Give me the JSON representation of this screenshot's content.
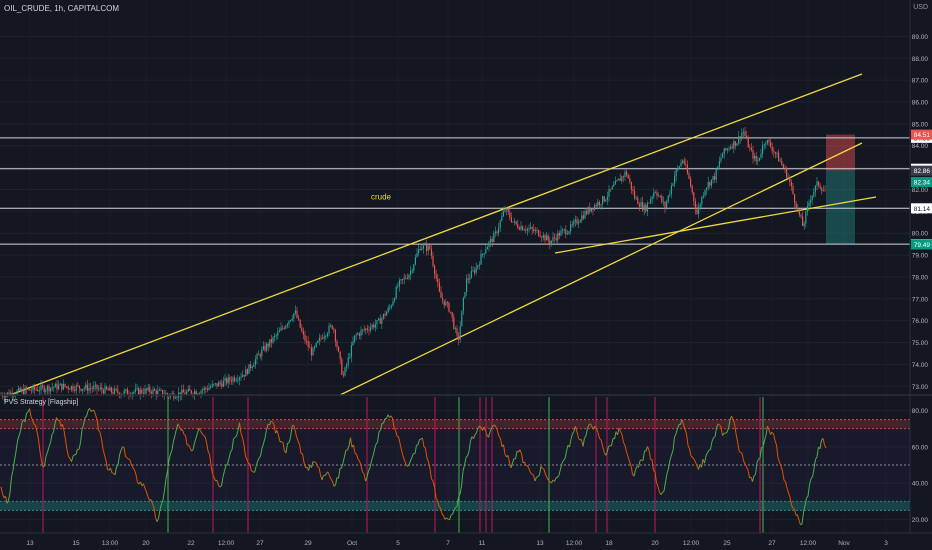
{
  "header": {
    "symbol": "OIL_CRUDE, 1h, CAPITALCOM",
    "currency": "USD"
  },
  "indicator": {
    "title": "PVS Strategy [Flagship]"
  },
  "chart_data": [
    {
      "type": "candlestick",
      "title": "OIL_CRUDE, 1h, CAPITALCOM",
      "y_ticks": [
        73.0,
        74.0,
        75.0,
        76.0,
        77.0,
        78.0,
        79.0,
        80.0,
        81.0,
        82.0,
        83.0,
        84.0,
        85.0,
        86.0,
        87.0,
        88.0,
        89.0
      ],
      "ylim": [
        72.6,
        90.3
      ],
      "price_anchors": [
        [
          0,
          72.6
        ],
        [
          25,
          72.8
        ],
        [
          60,
          73.0
        ],
        [
          95,
          72.9
        ],
        [
          120,
          72.7
        ],
        [
          150,
          72.8
        ],
        [
          170,
          72.6
        ],
        [
          200,
          72.8
        ],
        [
          225,
          73.2
        ],
        [
          245,
          73.6
        ],
        [
          262,
          74.6
        ],
        [
          278,
          75.4
        ],
        [
          295,
          76.4
        ],
        [
          303,
          75.3
        ],
        [
          312,
          74.5
        ],
        [
          322,
          75.3
        ],
        [
          333,
          75.8
        ],
        [
          343,
          73.4
        ],
        [
          355,
          75.3
        ],
        [
          365,
          75.6
        ],
        [
          378,
          75.9
        ],
        [
          390,
          76.6
        ],
        [
          398,
          77.6
        ],
        [
          410,
          78.2
        ],
        [
          420,
          79.4
        ],
        [
          430,
          79.3
        ],
        [
          440,
          77.1
        ],
        [
          450,
          76.5
        ],
        [
          458,
          75.0
        ],
        [
          466,
          77.8
        ],
        [
          476,
          78.4
        ],
        [
          485,
          79.3
        ],
        [
          495,
          79.9
        ],
        [
          505,
          81.1
        ],
        [
          515,
          80.4
        ],
        [
          528,
          80.2
        ],
        [
          540,
          80.0
        ],
        [
          550,
          79.6
        ],
        [
          560,
          80.0
        ],
        [
          570,
          80.2
        ],
        [
          580,
          80.7
        ],
        [
          592,
          81.2
        ],
        [
          605,
          81.6
        ],
        [
          615,
          82.2
        ],
        [
          626,
          82.8
        ],
        [
          635,
          81.6
        ],
        [
          645,
          81.1
        ],
        [
          655,
          82.0
        ],
        [
          665,
          81.2
        ],
        [
          675,
          82.7
        ],
        [
          683,
          83.4
        ],
        [
          690,
          82.3
        ],
        [
          697,
          80.9
        ],
        [
          705,
          82.1
        ],
        [
          715,
          82.6
        ],
        [
          722,
          83.6
        ],
        [
          730,
          84.0
        ],
        [
          737,
          84.2
        ],
        [
          743,
          84.7
        ],
        [
          750,
          83.8
        ],
        [
          757,
          83.2
        ],
        [
          765,
          84.3
        ],
        [
          772,
          83.9
        ],
        [
          780,
          83.3
        ],
        [
          788,
          82.6
        ],
        [
          796,
          81.3
        ],
        [
          803,
          80.3
        ],
        [
          810,
          81.6
        ],
        [
          818,
          82.3
        ],
        [
          825,
          81.9
        ]
      ],
      "horizontal_levels": [
        {
          "label": "84.36",
          "value": 84.36
        },
        {
          "label": "82.95",
          "value": 82.95
        },
        {
          "label": "81.14",
          "value": 81.14
        },
        {
          "label": "79.50",
          "value": 79.5
        }
      ],
      "price_labels": [
        {
          "text": "84.51",
          "value": 84.51,
          "color": "#ef5350"
        },
        {
          "text": "82.86",
          "value": 82.86,
          "color": "#3a3e4a"
        },
        {
          "text": "82.34",
          "value": 82.34,
          "color": "#089981"
        },
        {
          "text": "79.49",
          "value": 79.49,
          "color": "#089981"
        }
      ],
      "trend_channels": {
        "color": "#f2d93d",
        "lines": [
          {
            "x": [
              "Sep 12 00:00",
              "Oct 31 04:00"
            ],
            "y": [
              72.9,
              86.95
            ]
          },
          {
            "x": [
              "Sep 28 10:00",
              "Oct 31 04:00"
            ],
            "y": [
              72.35,
              81.55
            ]
          },
          {
            "x": [
              "Oct 13 04:00",
              "Oct 30 22:00"
            ],
            "y": [
              79.55,
              83.85
            ]
          }
        ]
      },
      "annotations": [
        {
          "text": "crude",
          "value": 81.55
        }
      ],
      "risk_reward": {
        "stop_top": 84.51,
        "entry": 82.86,
        "target": 79.49,
        "stop_color": "#ef5350",
        "target_color": "#26a69a"
      }
    },
    {
      "type": "line",
      "title": "PVS Strategy [Flagship]",
      "y_ticks": [
        20.0,
        40.0,
        60.0,
        80.0
      ],
      "ylim": [
        12.5,
        87.5
      ],
      "bands": {
        "upper": [
          70,
          75
        ],
        "lower": [
          25,
          30
        ],
        "mid": 50
      },
      "signal_lines_red_x": [
        43,
        213,
        248,
        367,
        435,
        480,
        486,
        492,
        596,
        607,
        655,
        760
      ],
      "signal_lines_green_x": [
        168,
        459,
        549,
        763
      ],
      "osc_anchors": [
        [
          0,
          38
        ],
        [
          8,
          28
        ],
        [
          15,
          55
        ],
        [
          22,
          73
        ],
        [
          30,
          80
        ],
        [
          37,
          68
        ],
        [
          43,
          48
        ],
        [
          50,
          62
        ],
        [
          57,
          78
        ],
        [
          63,
          70
        ],
        [
          70,
          52
        ],
        [
          78,
          58
        ],
        [
          85,
          75
        ],
        [
          92,
          82
        ],
        [
          100,
          68
        ],
        [
          108,
          48
        ],
        [
          115,
          44
        ],
        [
          122,
          60
        ],
        [
          130,
          52
        ],
        [
          137,
          42
        ],
        [
          145,
          38
        ],
        [
          152,
          28
        ],
        [
          158,
          18
        ],
        [
          163,
          32
        ],
        [
          170,
          55
        ],
        [
          178,
          72
        ],
        [
          186,
          64
        ],
        [
          192,
          58
        ],
        [
          199,
          72
        ],
        [
          206,
          65
        ],
        [
          213,
          46
        ],
        [
          220,
          38
        ],
        [
          227,
          50
        ],
        [
          234,
          64
        ],
        [
          240,
          72
        ],
        [
          247,
          52
        ],
        [
          254,
          45
        ],
        [
          262,
          58
        ],
        [
          270,
          75
        ],
        [
          278,
          66
        ],
        [
          286,
          58
        ],
        [
          293,
          72
        ],
        [
          300,
          60
        ],
        [
          308,
          46
        ],
        [
          315,
          54
        ],
        [
          322,
          42
        ],
        [
          328,
          48
        ],
        [
          335,
          38
        ],
        [
          342,
          50
        ],
        [
          350,
          64
        ],
        [
          358,
          55
        ],
        [
          365,
          42
        ],
        [
          372,
          52
        ],
        [
          380,
          70
        ],
        [
          390,
          78
        ],
        [
          400,
          62
        ],
        [
          408,
          48
        ],
        [
          415,
          58
        ],
        [
          422,
          66
        ],
        [
          430,
          48
        ],
        [
          437,
          30
        ],
        [
          444,
          22
        ],
        [
          450,
          20
        ],
        [
          457,
          26
        ],
        [
          464,
          48
        ],
        [
          472,
          65
        ],
        [
          480,
          72
        ],
        [
          488,
          66
        ],
        [
          495,
          74
        ],
        [
          503,
          60
        ],
        [
          511,
          50
        ],
        [
          519,
          58
        ],
        [
          527,
          48
        ],
        [
          535,
          42
        ],
        [
          543,
          50
        ],
        [
          551,
          38
        ],
        [
          559,
          46
        ],
        [
          567,
          58
        ],
        [
          575,
          70
        ],
        [
          583,
          62
        ],
        [
          591,
          74
        ],
        [
          599,
          66
        ],
        [
          606,
          56
        ],
        [
          613,
          64
        ],
        [
          620,
          70
        ],
        [
          627,
          55
        ],
        [
          634,
          44
        ],
        [
          641,
          52
        ],
        [
          648,
          60
        ],
        [
          655,
          45
        ],
        [
          662,
          32
        ],
        [
          669,
          48
        ],
        [
          676,
          68
        ],
        [
          683,
          75
        ],
        [
          690,
          56
        ],
        [
          697,
          48
        ],
        [
          704,
          52
        ],
        [
          711,
          60
        ],
        [
          718,
          72
        ],
        [
          725,
          66
        ],
        [
          732,
          78
        ],
        [
          739,
          60
        ],
        [
          746,
          48
        ],
        [
          753,
          42
        ],
        [
          760,
          55
        ],
        [
          767,
          70
        ],
        [
          774,
          66
        ],
        [
          781,
          48
        ],
        [
          788,
          34
        ],
        [
          795,
          25
        ],
        [
          801,
          16
        ],
        [
          806,
          30
        ],
        [
          812,
          44
        ],
        [
          818,
          58
        ],
        [
          823,
          64
        ],
        [
          827,
          58
        ]
      ]
    }
  ],
  "x_axis_labels": [
    "13",
    "15",
    "13:00",
    "20",
    "22",
    "12:00",
    "27",
    "29",
    "Oct",
    "5",
    "7",
    "11",
    "13",
    "12:00",
    "18",
    "20",
    "12:00",
    "25",
    "27",
    "12:00",
    "Nov",
    "3"
  ]
}
